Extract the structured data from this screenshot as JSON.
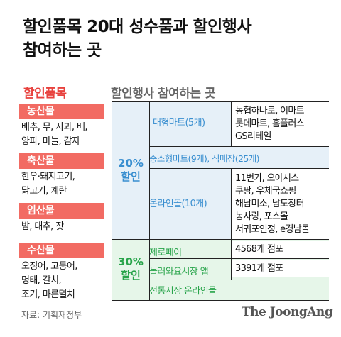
{
  "title": {
    "line1": "할인품목 20대 성수품과 할인행사",
    "line2": "참여하는 곳"
  },
  "left_header": "할인품목",
  "right_header": "할인행사 참여하는 곳",
  "categories": [
    {
      "name": "농산물",
      "items": [
        "배추, 무, 사과, 배,",
        "양파, 마늘, 감자"
      ]
    },
    {
      "name": "축산물",
      "items": [
        "한우·돼지고기,",
        "닭고기, 계란"
      ]
    },
    {
      "name": "임산물",
      "items": [
        "밤, 대추, 잣"
      ]
    },
    {
      "name": "수산물",
      "items": [
        "오징어, 고등어,",
        "명태, 갈치,",
        "조기, 마른멸치"
      ]
    }
  ],
  "discount_20": {
    "percent": "20%",
    "label": "할인",
    "rows": [
      {
        "name": "대형마트(5개)",
        "stores": [
          "농협하나로, 이마트",
          "롯데마트, 홈플러스",
          "GS리테일"
        ]
      },
      {
        "name": "중소형마트(9개), 직매장(25개)"
      },
      {
        "name": "온라인몰(10개)",
        "stores": [
          "11번가, 오아시스",
          "쿠팡, 우체국쇼핑",
          "해남미소, 남도장터",
          "농사랑, 포스몰",
          "서귀포인정, e경남몰"
        ]
      }
    ]
  },
  "discount_30": {
    "percent": "30%",
    "label": "할인",
    "rows": [
      {
        "name": "제로페이",
        "stores": [
          "4568개 점포"
        ]
      },
      {
        "name": "놀러와요시장 앱",
        "stores": [
          "3391개 점포"
        ]
      },
      {
        "name": "전통시장 온라인몰"
      }
    ]
  },
  "source": "자료: 기획재정부",
  "credit": "The JoongAng",
  "colors": {
    "red_accent": "#e8423e",
    "category_bg": "#f26b63",
    "blue_text": "#3a8fd0",
    "blue_bg": "#e6f0f8",
    "green_text": "#28a44a",
    "green_bg": "#e6f6e9"
  }
}
